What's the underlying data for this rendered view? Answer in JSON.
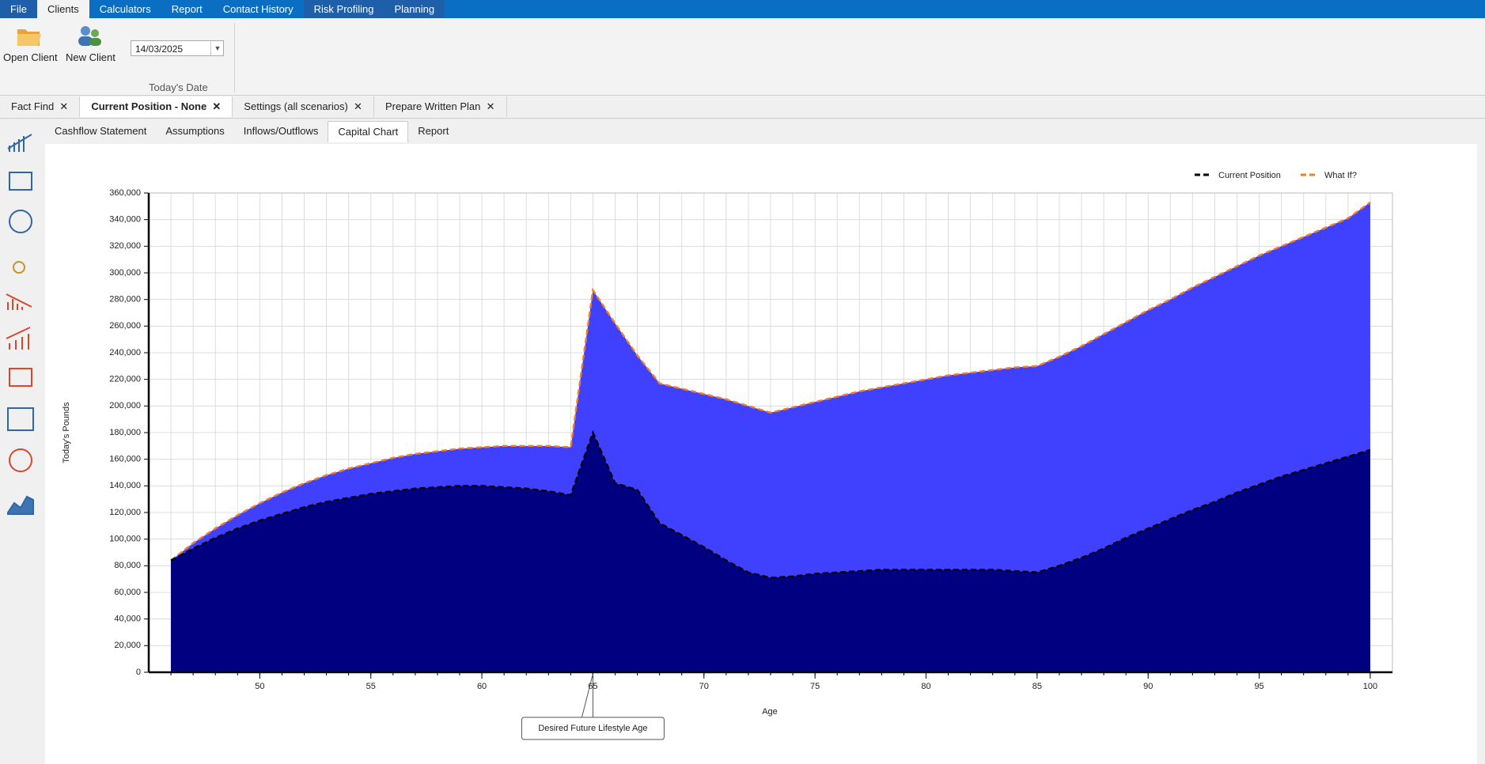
{
  "menu": {
    "items": [
      "File",
      "Clients",
      "Calculators",
      "Report",
      "Contact History",
      "Risk Profiling",
      "Planning"
    ]
  },
  "ribbon": {
    "buttons": [
      "Open Client",
      "New Client"
    ],
    "date": "14/03/2025",
    "date_caption": "Today's Date"
  },
  "doc_tabs": [
    "Fact Find",
    "Current Position - None",
    "Settings (all scenarios)",
    "Prepare Written Plan"
  ],
  "sub_tabs": [
    "Cashflow Statement",
    "Assumptions",
    "Inflows/Outflows",
    "Capital Chart",
    "Report"
  ],
  "chart_data": {
    "type": "area",
    "x_label": "Age",
    "y_label": "Today's Pounds",
    "x": [
      46,
      47,
      48,
      49,
      50,
      51,
      52,
      53,
      54,
      55,
      56,
      57,
      58,
      59,
      60,
      61,
      62,
      63,
      64,
      65,
      66,
      67,
      68,
      69,
      70,
      71,
      72,
      73,
      74,
      75,
      76,
      77,
      78,
      79,
      80,
      81,
      82,
      83,
      84,
      85,
      86,
      87,
      88,
      89,
      90,
      91,
      92,
      93,
      94,
      95,
      96,
      97,
      98,
      99,
      100
    ],
    "series": [
      {
        "name": "What If?",
        "color": "#f47c20",
        "fill": "#4040ff",
        "values": [
          84000,
          97000,
          108000,
          118000,
          127000,
          135000,
          142000,
          148000,
          153000,
          157000,
          161000,
          164000,
          166000,
          168000,
          169000,
          170000,
          170000,
          170000,
          169000,
          287000,
          262000,
          238000,
          217000,
          213000,
          209000,
          205000,
          200000,
          195000,
          199000,
          203000,
          207000,
          211000,
          214000,
          217000,
          220000,
          223000,
          225000,
          227000,
          229000,
          230000,
          237000,
          245000,
          254000,
          263000,
          272000,
          280000,
          289000,
          297000,
          305000,
          313000,
          320000,
          327000,
          334000,
          341000,
          353000
        ]
      },
      {
        "name": "Current Position",
        "color": "#000000",
        "fill": "#000080",
        "values": [
          84000,
          93000,
          101000,
          108000,
          114000,
          119000,
          124000,
          128000,
          131000,
          134000,
          136000,
          138000,
          139000,
          140000,
          140000,
          139000,
          138000,
          136000,
          133000,
          180000,
          142000,
          137000,
          112000,
          103000,
          94000,
          84000,
          75000,
          71000,
          72000,
          74000,
          75000,
          76000,
          77000,
          77000,
          77000,
          77000,
          77000,
          77000,
          76000,
          75000,
          80000,
          86000,
          93000,
          101000,
          108000,
          115000,
          122000,
          128000,
          135000,
          141000,
          147000,
          152000,
          157000,
          162000,
          167000
        ]
      }
    ],
    "legend_order": [
      1,
      0
    ],
    "xlim": [
      45,
      101
    ],
    "xticks": [
      50,
      55,
      60,
      65,
      70,
      75,
      80,
      85,
      90,
      95,
      100
    ],
    "xminorticks": [
      46,
      47,
      48,
      49,
      50,
      51,
      52,
      53,
      54,
      55,
      56,
      57,
      58,
      59,
      60,
      61,
      62,
      63,
      64,
      65,
      66,
      67,
      68,
      69,
      70,
      71,
      72,
      73,
      74,
      75,
      76,
      77,
      78,
      79,
      80,
      81,
      82,
      83,
      84,
      85,
      86,
      87,
      88,
      89,
      90,
      91,
      92,
      93,
      94,
      95,
      96,
      97,
      98,
      99,
      100
    ],
    "ylim": [
      0,
      360000
    ],
    "yticks": [
      0,
      {
        "value": 20000,
        "label": "20,000"
      },
      {
        "value": 40000,
        "label": "40,000"
      },
      {
        "value": 60000,
        "label": "60,000"
      },
      {
        "value": 80000,
        "label": "80,000"
      },
      {
        "value": 100000,
        "label": "100,000"
      },
      {
        "value": 120000,
        "label": "120,000"
      },
      {
        "value": 140000,
        "label": "140,000"
      },
      {
        "value": 160000,
        "label": "160,000"
      },
      {
        "value": 180000,
        "label": "180,000"
      },
      {
        "value": 200000,
        "label": "200,000"
      },
      {
        "value": 220000,
        "label": "220,000"
      },
      {
        "value": 240000,
        "label": "240,000"
      },
      {
        "value": 260000,
        "label": "260,000"
      },
      {
        "value": 280000,
        "label": "280,000"
      },
      {
        "value": 300000,
        "label": "300,000"
      },
      {
        "value": 320000,
        "label": "320,000"
      },
      {
        "value": 340000,
        "label": "340,000"
      },
      {
        "value": 360000,
        "label": "360,000"
      }
    ],
    "grid": true,
    "legend": "top-right",
    "annotations": [
      {
        "text": "Desired Future Lifestyle Age",
        "x": 65
      }
    ]
  }
}
